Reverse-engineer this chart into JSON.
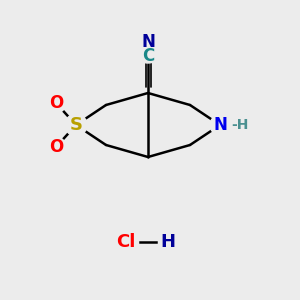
{
  "background_color": "#ececec",
  "bond_color": "#000000",
  "atom_colors": {
    "S": "#b8a000",
    "O": "#ff0000",
    "N": "#0000ee",
    "C": "#1a8888",
    "N_dark": "#000099",
    "H": "#4a9090",
    "Cl": "#ff0000",
    "H_hcl": "#000099"
  },
  "figsize": [
    3.0,
    3.0
  ],
  "dpi": 100
}
